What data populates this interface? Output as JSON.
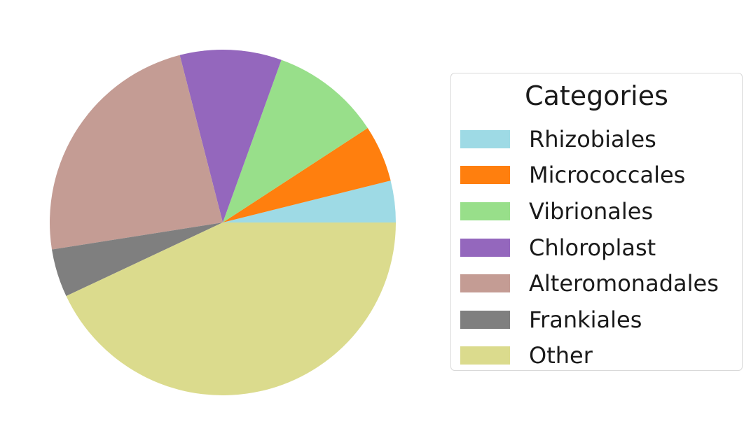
{
  "chart_data": {
    "type": "pie",
    "title": "",
    "start_angle_deg": 0,
    "direction": "counterclockwise",
    "slices": [
      {
        "label": "Rhizobiales",
        "value": 3.9,
        "color": "#9edae5"
      },
      {
        "label": "Micrococcales",
        "value": 5.3,
        "color": "#ff7f0e"
      },
      {
        "label": "Vibrionales",
        "value": 10.3,
        "color": "#98df8a"
      },
      {
        "label": "Chloroplast",
        "value": 9.5,
        "color": "#9467bd"
      },
      {
        "label": "Alteromonadales",
        "value": 23.5,
        "color": "#c49c94"
      },
      {
        "label": "Frankiales",
        "value": 4.5,
        "color": "#7f7f7f"
      },
      {
        "label": "Other",
        "value": 43.0,
        "color": "#dbdb8d"
      }
    ],
    "legend": {
      "title": "Categories",
      "placement": "right"
    }
  }
}
